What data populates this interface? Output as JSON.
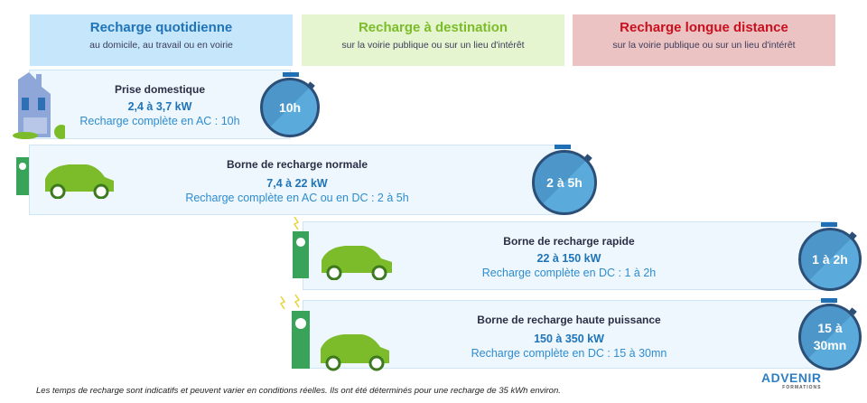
{
  "categories": [
    {
      "title": "Recharge quotidienne",
      "subtitle": "au domicile, au travail ou en voirie",
      "color": "#1f74b8",
      "bg": "#c5e6fb"
    },
    {
      "title": "Recharge à destination",
      "subtitle": "sur la voirie publique ou sur un lieu d'intérêt",
      "color": "#7cbc2a",
      "bg": "#e5f5d0"
    },
    {
      "title": "Recharge longue distance",
      "subtitle": "sur la voirie publique ou sur un lieu d'intérêt",
      "color": "#c8101e",
      "bg": "#ebc3c3"
    }
  ],
  "rows": [
    {
      "name": "Prise domestique",
      "power": "2,4 à 3,7 kW",
      "detail": "Recharge complète en AC : 10h",
      "time": "10h"
    },
    {
      "name": "Borne de recharge normale",
      "power": "7,4 à 22 kW",
      "detail": "Recharge complète en AC ou en DC : 2 à 5h",
      "time": "2 à 5h"
    },
    {
      "name": "Borne de recharge rapide",
      "power": "22 à 150 kW",
      "detail": "Recharge complète en DC : 1 à 2h",
      "time": "1 à 2h"
    },
    {
      "name": "Borne de recharge haute puissance",
      "power": "150 à 350 kW",
      "detail": "Recharge complète en DC : 15 à 30mn",
      "time": "15 à 30mn"
    }
  ],
  "footnote": "Les temps de recharge sont indicatifs et peuvent varier en conditions réelles. Ils ont été déterminés pour une recharge de 35 kWh environ.",
  "logo": {
    "name": "ADVENIR",
    "sub": "FORMATIONS"
  }
}
